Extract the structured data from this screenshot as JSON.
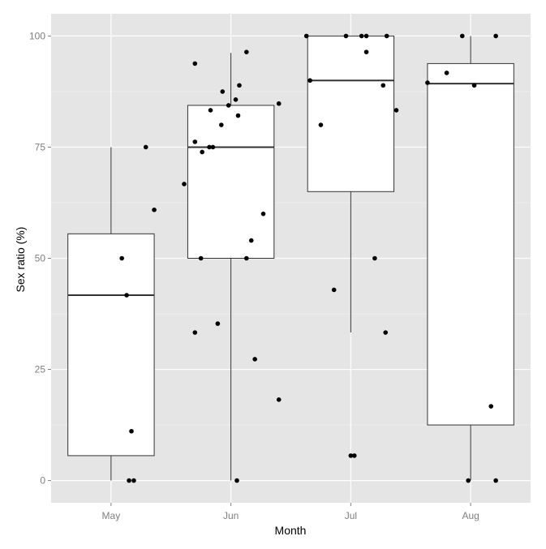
{
  "chart_data": {
    "type": "boxplot",
    "xlabel": "Month",
    "ylabel": "Sex ratio (%)",
    "categories": [
      "May",
      "Jun",
      "Jul",
      "Aug"
    ],
    "ylim": [
      -5,
      105
    ],
    "yticks": [
      0,
      25,
      50,
      75,
      100
    ],
    "grid": true,
    "background_color": "#e5e5e5",
    "grid_color": "#ffffff",
    "box_fill": "#ffffff",
    "box_stroke": "#333333",
    "point_color": "#000000",
    "boxes": [
      {
        "category": "May",
        "whisker_low": 0,
        "q1": 5.6,
        "median": 41.7,
        "q3": 55.5,
        "whisker_high": 75
      },
      {
        "category": "Jun",
        "whisker_low": 0,
        "q1": 50,
        "median": 75,
        "q3": 84.4,
        "whisker_high": 96.2
      },
      {
        "category": "Jul",
        "whisker_low": 33.3,
        "q1": 65,
        "median": 90,
        "q3": 100,
        "whisker_high": 100
      },
      {
        "category": "Aug",
        "whisker_low": 0,
        "q1": 12.5,
        "median": 89.3,
        "q3": 93.8,
        "whisker_high": 100
      }
    ],
    "points": [
      {
        "category": "May",
        "jitter": 0.09,
        "y": 50
      },
      {
        "category": "May",
        "jitter": 0.13,
        "y": 41.7
      },
      {
        "category": "May",
        "jitter": 0.17,
        "y": 11.1
      },
      {
        "category": "May",
        "jitter": 0.15,
        "y": 0
      },
      {
        "category": "May",
        "jitter": 0.19,
        "y": 0
      },
      {
        "category": "May",
        "jitter": 0.29,
        "y": 75
      },
      {
        "category": "May",
        "jitter": 0.36,
        "y": 60.9
      },
      {
        "category": "Jun",
        "jitter": -0.39,
        "y": 66.7
      },
      {
        "category": "Jun",
        "jitter": -0.3,
        "y": 93.8
      },
      {
        "category": "Jun",
        "jitter": -0.3,
        "y": 76.2
      },
      {
        "category": "Jun",
        "jitter": -0.24,
        "y": 73.9
      },
      {
        "category": "Jun",
        "jitter": -0.18,
        "y": 75
      },
      {
        "category": "Jun",
        "jitter": -0.15,
        "y": 75
      },
      {
        "category": "Jun",
        "jitter": -0.17,
        "y": 83.3
      },
      {
        "category": "Jun",
        "jitter": -0.07,
        "y": 87.5
      },
      {
        "category": "Jun",
        "jitter": -0.08,
        "y": 80
      },
      {
        "category": "Jun",
        "jitter": -0.02,
        "y": 84.4
      },
      {
        "category": "Jun",
        "jitter": 0.04,
        "y": 85.7
      },
      {
        "category": "Jun",
        "jitter": 0.07,
        "y": 88.9
      },
      {
        "category": "Jun",
        "jitter": 0.06,
        "y": 82.1
      },
      {
        "category": "Jun",
        "jitter": 0.13,
        "y": 96.4
      },
      {
        "category": "Jun",
        "jitter": 0.4,
        "y": 84.8
      },
      {
        "category": "Jun",
        "jitter": -0.25,
        "y": 50
      },
      {
        "category": "Jun",
        "jitter": 0.13,
        "y": 50
      },
      {
        "category": "Jun",
        "jitter": 0.17,
        "y": 54
      },
      {
        "category": "Jun",
        "jitter": 0.27,
        "y": 60
      },
      {
        "category": "Jun",
        "jitter": -0.3,
        "y": 33.3
      },
      {
        "category": "Jun",
        "jitter": -0.11,
        "y": 35.3
      },
      {
        "category": "Jun",
        "jitter": 0.2,
        "y": 27.3
      },
      {
        "category": "Jun",
        "jitter": 0.4,
        "y": 18.2
      },
      {
        "category": "Jun",
        "jitter": 0.05,
        "y": 0
      },
      {
        "category": "Jul",
        "jitter": -0.37,
        "y": 100
      },
      {
        "category": "Jul",
        "jitter": -0.04,
        "y": 100
      },
      {
        "category": "Jul",
        "jitter": 0.09,
        "y": 100
      },
      {
        "category": "Jul",
        "jitter": 0.13,
        "y": 100
      },
      {
        "category": "Jul",
        "jitter": 0.3,
        "y": 100
      },
      {
        "category": "Jul",
        "jitter": 0.13,
        "y": 96.4
      },
      {
        "category": "Jul",
        "jitter": -0.34,
        "y": 90
      },
      {
        "category": "Jul",
        "jitter": 0.27,
        "y": 88.9
      },
      {
        "category": "Jul",
        "jitter": 0.38,
        "y": 83.3
      },
      {
        "category": "Jul",
        "jitter": -0.25,
        "y": 80
      },
      {
        "category": "Jul",
        "jitter": 0.2,
        "y": 50
      },
      {
        "category": "Jul",
        "jitter": -0.14,
        "y": 42.9
      },
      {
        "category": "Jul",
        "jitter": 0.29,
        "y": 33.3
      },
      {
        "category": "Jul",
        "jitter": 0.0,
        "y": 5.6
      },
      {
        "category": "Jul",
        "jitter": 0.03,
        "y": 5.6
      },
      {
        "category": "Aug",
        "jitter": -0.36,
        "y": 89.5
      },
      {
        "category": "Aug",
        "jitter": -0.2,
        "y": 91.7
      },
      {
        "category": "Aug",
        "jitter": -0.07,
        "y": 100
      },
      {
        "category": "Aug",
        "jitter": 0.21,
        "y": 100
      },
      {
        "category": "Aug",
        "jitter": 0.03,
        "y": 88.9
      },
      {
        "category": "Aug",
        "jitter": 0.17,
        "y": 16.7
      },
      {
        "category": "Aug",
        "jitter": -0.02,
        "y": 0
      },
      {
        "category": "Aug",
        "jitter": 0.21,
        "y": 0
      }
    ]
  }
}
